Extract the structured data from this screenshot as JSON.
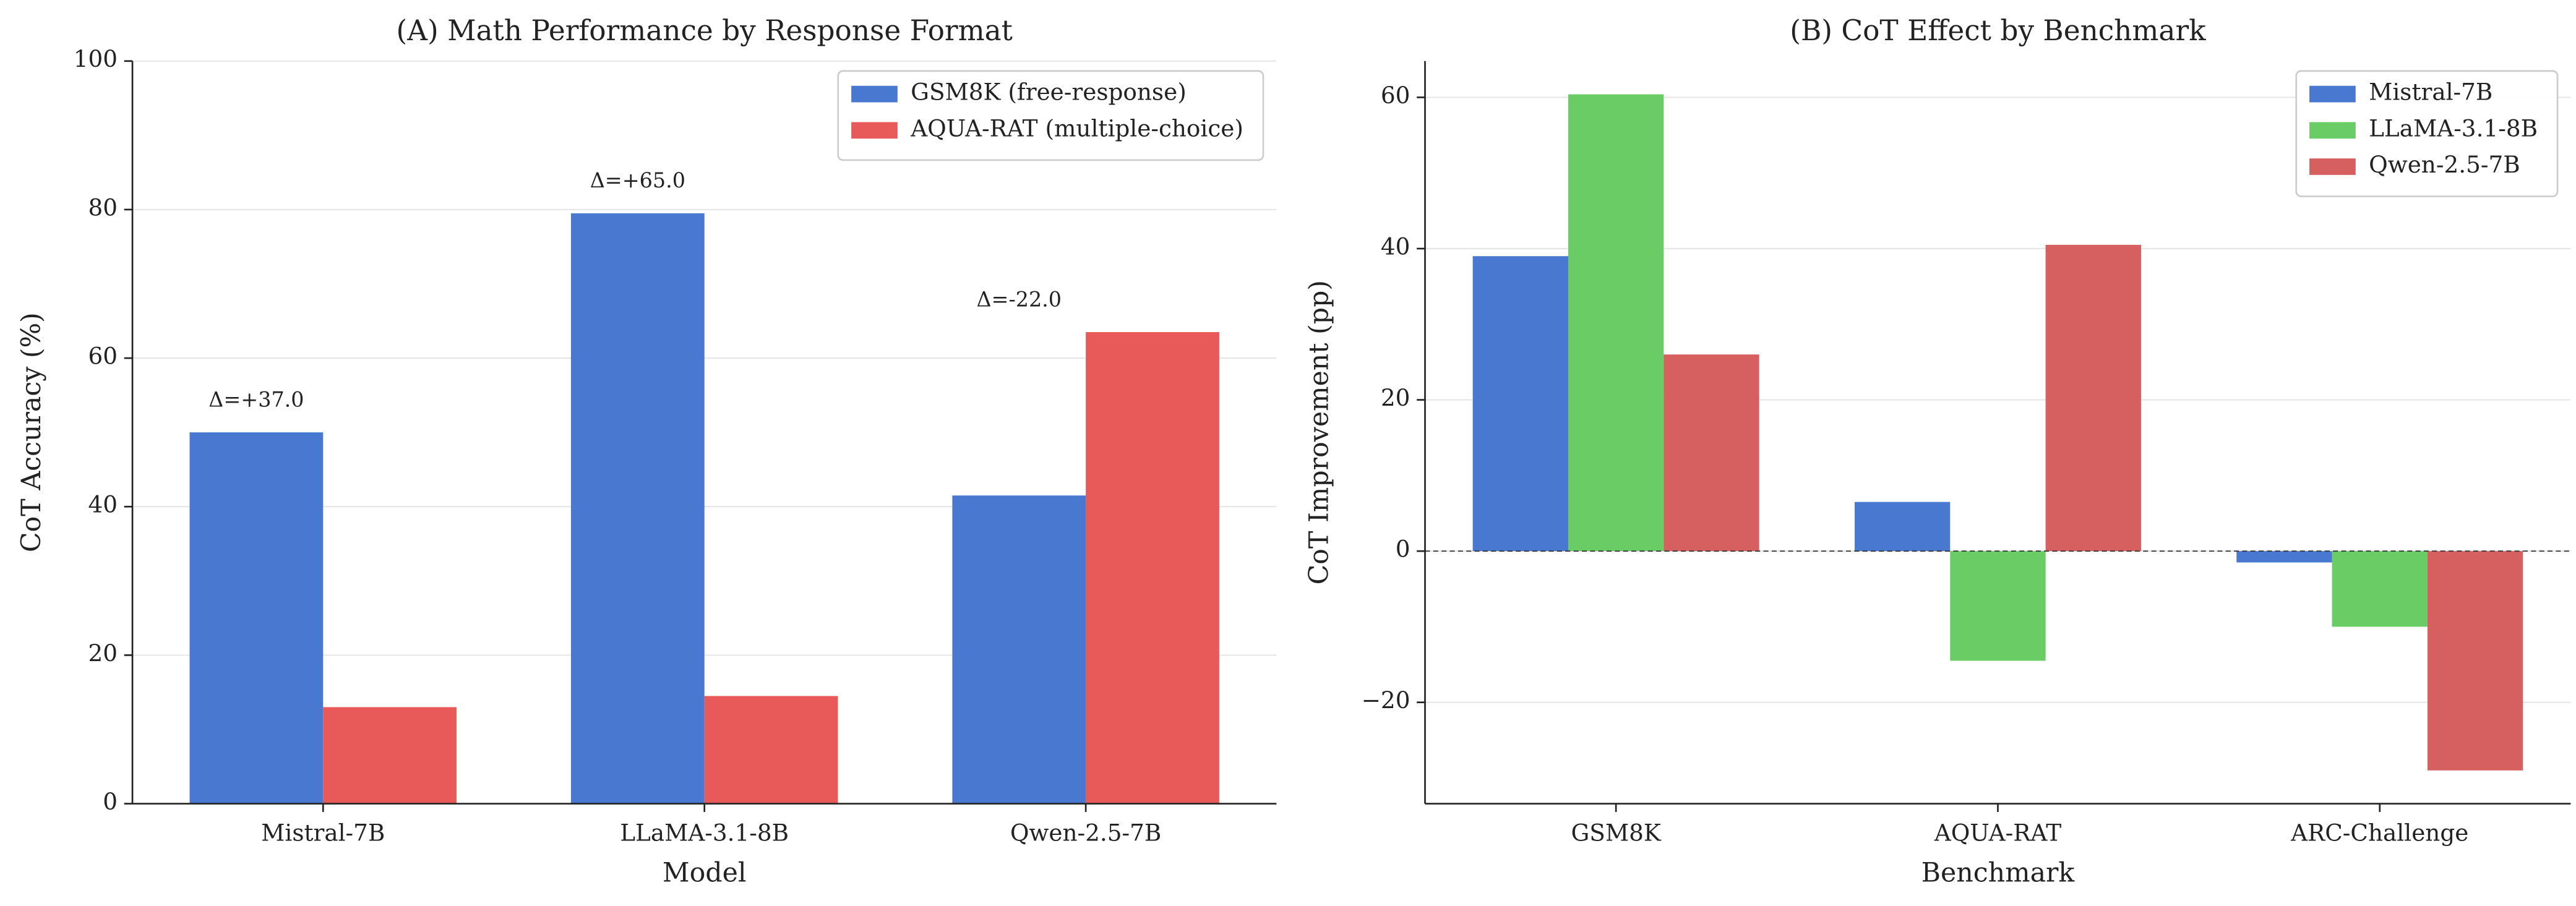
{
  "chart_data": [
    {
      "type": "bar",
      "title": "(A) Math Performance by Response Format",
      "xlabel": "Model",
      "ylabel": "CoT Accuracy (%)",
      "categories": [
        "Mistral-7B",
        "LLaMA-3.1-8B",
        "Qwen-2.5-7B"
      ],
      "series": [
        {
          "name": "GSM8K (free-response)",
          "color": "#4878d0",
          "values": [
            50.0,
            79.5,
            41.5
          ]
        },
        {
          "name": "AQUA-RAT (multiple-choice)",
          "color": "#e85a5a",
          "values": [
            13.0,
            14.5,
            63.5
          ]
        }
      ],
      "annotations": [
        "Δ=+37.0",
        "Δ=+65.0",
        "Δ=-22.0"
      ],
      "ylim": [
        0,
        100
      ],
      "yticks": [
        0,
        20,
        40,
        60,
        80,
        100
      ],
      "grid": true,
      "legend": "upper right"
    },
    {
      "type": "bar",
      "title": "(B) CoT Effect by Benchmark",
      "xlabel": "Benchmark",
      "ylabel": "CoT Improvement (pp)",
      "categories": [
        "GSM8K",
        "AQUA-RAT",
        "ARC-Challenge"
      ],
      "series": [
        {
          "name": "Mistral-7B",
          "color": "#4878d0",
          "values": [
            39.0,
            6.5,
            -1.5
          ]
        },
        {
          "name": "LLaMA-3.1-8B",
          "color": "#6acc64",
          "values": [
            60.4,
            -14.5,
            -10.0
          ]
        },
        {
          "name": "Qwen-2.5-7B",
          "color": "#d65f5f",
          "values": [
            26.0,
            40.5,
            -29.0
          ]
        }
      ],
      "ylim": [
        -33.4,
        64.8
      ],
      "yticks": [
        {
          "value": -20,
          "label": "−20"
        },
        0,
        20,
        40,
        60
      ],
      "grid": true,
      "zero_line": true,
      "legend": "upper right"
    }
  ]
}
